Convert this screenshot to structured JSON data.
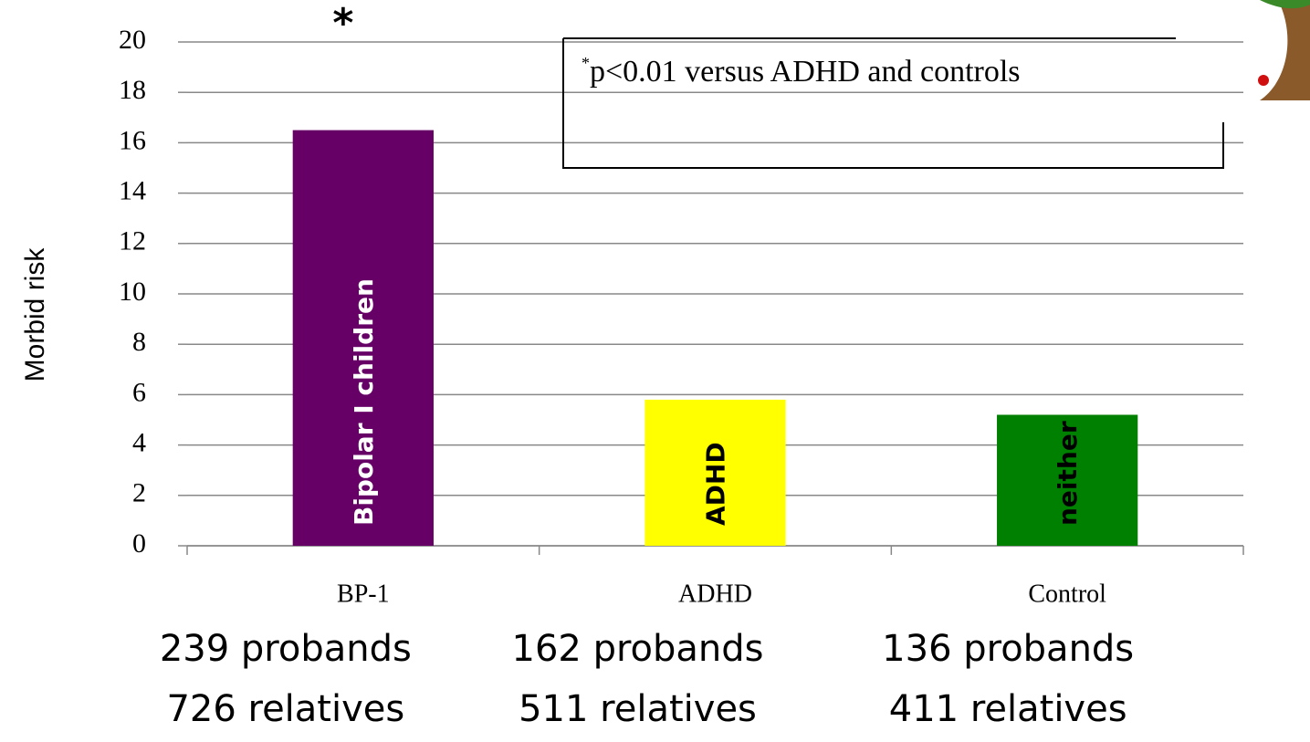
{
  "chart_data": {
    "type": "bar",
    "categories": [
      "BP-1",
      "ADHD",
      "Control"
    ],
    "values": [
      16.5,
      5.8,
      5.2
    ],
    "colors": [
      "#660066",
      "#ffff00",
      "#008000"
    ],
    "bar_labels": [
      "Bipolar I children",
      "ADHD",
      "neither"
    ],
    "bar_label_colors": [
      "#ffffff",
      "#000000",
      "#000000"
    ],
    "ylabel": "Morbid risk",
    "ylim": [
      0,
      20
    ],
    "yticks": [
      0,
      2,
      4,
      6,
      8,
      10,
      12,
      14,
      16,
      18,
      20
    ],
    "grid": true,
    "significance_marker": "*",
    "annotation": {
      "marker": "*",
      "text": "p<0.01 versus ADHD and controls"
    },
    "category_notes": [
      [
        "239 probands",
        "726 relatives"
      ],
      [
        "162 probands",
        "511 relatives"
      ],
      [
        "136 probands",
        "411 relatives"
      ]
    ]
  }
}
